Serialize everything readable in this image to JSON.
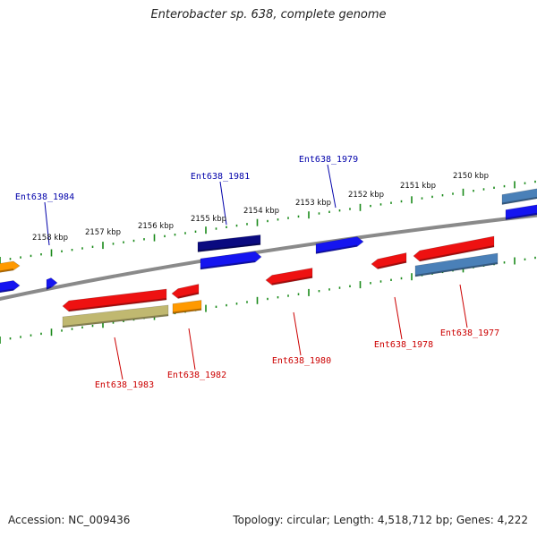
{
  "title": "Enterobacter sp. 638, complete genome",
  "accession": "Accession: NC_009436",
  "topology": "Topology: circular; Length: 4,518,712 bp; Genes: 4,222",
  "colors": {
    "backbone": "#7a7a7a",
    "ticks": "#1a8a1a",
    "top_label": "#0000aa",
    "bottom_label": "#cc0000",
    "gene_red": "#ee1111",
    "gene_blue": "#1515f0",
    "gene_navy": "#0a0a80",
    "gene_steel": "#4a80b8",
    "gene_orange": "#ff9900",
    "gene_khaki": "#c0b870"
  },
  "scale_labels": [
    "2158 kbp",
    "2157 kbp",
    "2156 kbp",
    "2155 kbp",
    "2154 kbp",
    "2153 kbp",
    "2152 kbp",
    "2151 kbp",
    "2150 kbp"
  ],
  "gene_labels": {
    "top": [
      "Ent638_1984",
      "Ent638_1981",
      "Ent638_1979"
    ],
    "bottom": [
      "Ent638_1983",
      "Ent638_1982",
      "Ent638_1980",
      "Ent638_1978",
      "Ent638_1977"
    ]
  }
}
